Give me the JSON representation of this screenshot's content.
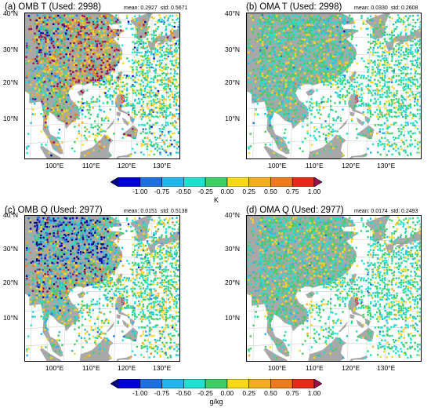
{
  "panels": [
    {
      "title": "(a) OMB T (Used: 2998)",
      "mean": "mean: 0.2927",
      "std": "std: 0.5671",
      "seed": 11,
      "mode": "omb_t"
    },
    {
      "title": "(b) OMA T (Used: 2998)",
      "mean": "mean: 0.0330",
      "std": "std: 0.2608",
      "seed": 23,
      "mode": "oma"
    },
    {
      "title": "(c) OMB Q (Used: 2977)",
      "mean": "mean: 0.0151",
      "std": "std: 0.5138",
      "seed": 37,
      "mode": "omb_q"
    },
    {
      "title": "(d) OMA Q (Used: 2977)",
      "mean": "mean: 0.0174",
      "std": "std: 0.2493",
      "seed": 51,
      "mode": "oma"
    }
  ],
  "lat_labels": [
    "40°N",
    "30°N",
    "20°N",
    "10°N"
  ],
  "lon_labels": [
    "100°E",
    "110°E",
    "120°E",
    "130°E"
  ],
  "typhoon_symbol": "§",
  "colorbars": [
    {
      "unit": "K",
      "ticks": [
        "-1.00",
        "-0.75",
        "-0.50",
        "-0.25",
        "0.00",
        "0.25",
        "0.50",
        "0.75",
        "1.00"
      ]
    },
    {
      "unit": "g/kg",
      "ticks": [
        "-1.00",
        "-0.75",
        "-0.50",
        "-0.25",
        "0.00",
        "0.25",
        "0.50",
        "0.75",
        "1.00"
      ]
    }
  ],
  "colors": {
    "bins": [
      "#00008c",
      "#0000d8",
      "#1f6fe0",
      "#22b7ec",
      "#1ee0cf",
      "#3ccf63",
      "#f7d916",
      "#f4ae1d",
      "#ee7a1a",
      "#e82818",
      "#9e0a4f"
    ],
    "land": "#a8a8a8",
    "grid": "#d0d0d0",
    "typhoon": "#e8183c"
  },
  "map": {
    "lon_range": [
      93,
      139
    ],
    "lat_range": [
      0,
      42
    ]
  }
}
